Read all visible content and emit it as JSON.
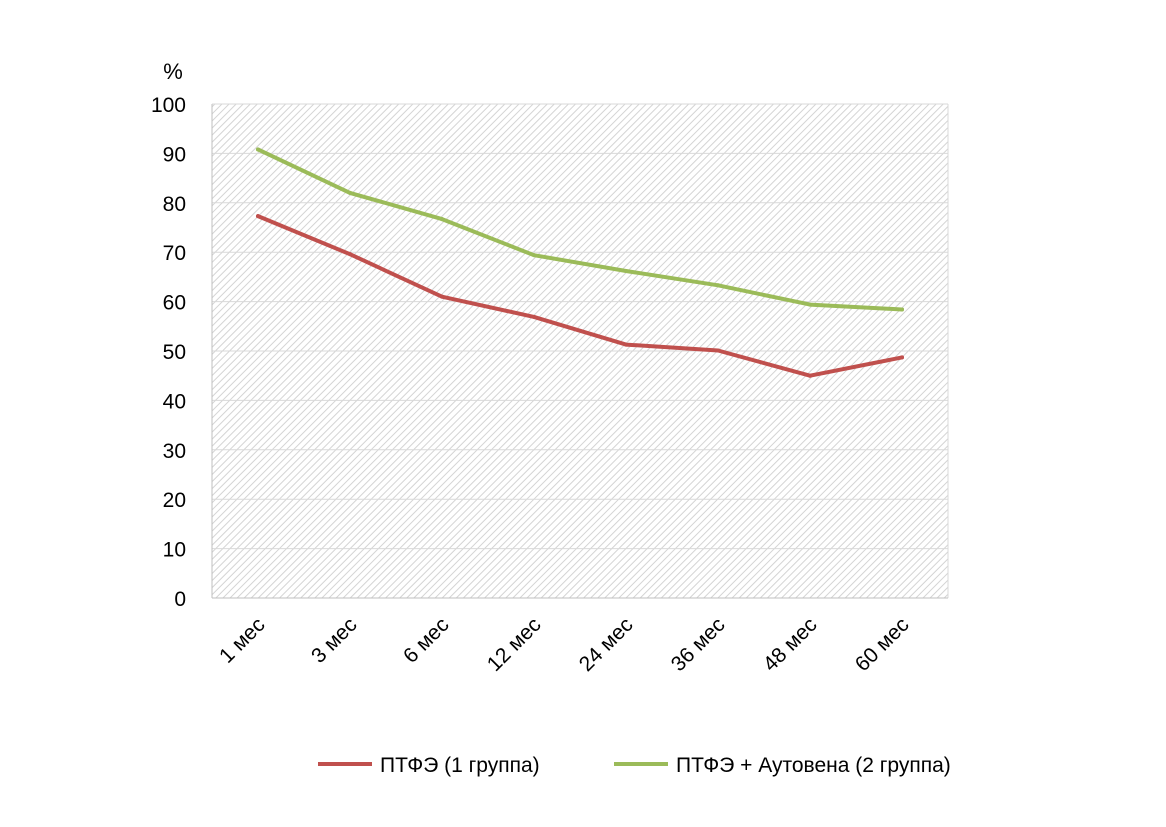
{
  "chart_data": {
    "type": "line",
    "title": "",
    "xlabel": "",
    "ylabel": "%",
    "ylim": [
      0,
      100
    ],
    "yticks": [
      0,
      10,
      20,
      30,
      40,
      50,
      60,
      70,
      80,
      90,
      100
    ],
    "categories": [
      "1 мес",
      "3 мес",
      "6 мес",
      "12 мес",
      "24 мес",
      "36 мес",
      "48 мес",
      "60 мес"
    ],
    "grid": true,
    "legend_position": "bottom",
    "series": [
      {
        "name": "ПТФЭ (1 группа)",
        "color": "#c0504d",
        "values": [
          77.3,
          69.6,
          61.0,
          56.9,
          51.3,
          50.1,
          45.0,
          48.7
        ]
      },
      {
        "name": "ПТФЭ + Аутовена (2 группа)",
        "color": "#9bbb59",
        "values": [
          90.8,
          82.0,
          76.7,
          69.4,
          66.2,
          63.3,
          59.4,
          58.4
        ]
      }
    ]
  }
}
